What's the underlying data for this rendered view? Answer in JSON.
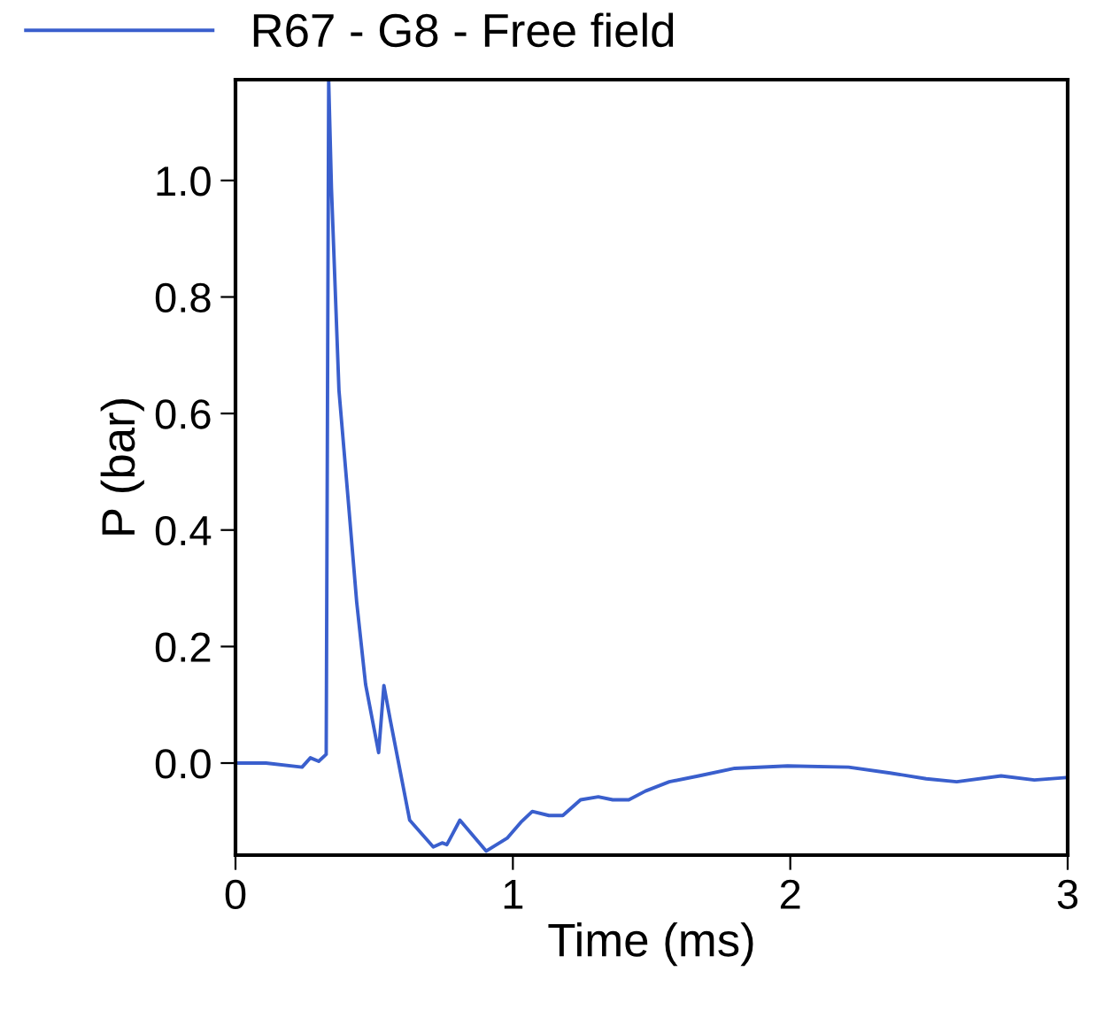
{
  "chart_data": {
    "type": "line",
    "xlabel": "Time (ms)",
    "ylabel": "P (bar)",
    "xlim": [
      0,
      3
    ],
    "ylim": [
      -0.158,
      1.173
    ],
    "xticks": [
      0,
      1,
      2,
      3
    ],
    "yticks": [
      {
        "value": 0,
        "label": "0.0"
      },
      {
        "value": 0.2,
        "label": "0.2"
      },
      {
        "value": 0.4,
        "label": "0.4"
      },
      {
        "value": 0.6,
        "label": "0.6"
      },
      {
        "value": 0.8,
        "label": "0.8"
      },
      {
        "value": 1.0,
        "label": "1.0"
      }
    ],
    "grid": false,
    "legend": "top left",
    "marker": "none",
    "line_style": "solid",
    "series": [
      {
        "name": "R67 - G8 - Free field",
        "color": "#3a5fcd",
        "x": [
          0.01,
          0.11,
          0.24,
          0.27,
          0.3,
          0.327,
          0.336,
          0.346,
          0.373,
          0.405,
          0.437,
          0.469,
          0.516,
          0.535,
          0.558,
          0.628,
          0.713,
          0.745,
          0.762,
          0.809,
          0.904,
          0.979,
          1.032,
          1.07,
          1.13,
          1.18,
          1.244,
          1.308,
          1.36,
          1.418,
          1.478,
          1.564,
          1.67,
          1.8,
          1.99,
          2.21,
          2.36,
          2.49,
          2.6,
          2.76,
          2.88,
          2.99
        ],
        "values": [
          0.0,
          0.0,
          -0.007,
          0.009,
          0.003,
          0.015,
          1.17,
          0.986,
          0.64,
          0.459,
          0.276,
          0.135,
          0.018,
          0.133,
          0.074,
          -0.098,
          -0.144,
          -0.137,
          -0.14,
          -0.098,
          -0.151,
          -0.129,
          -0.1,
          -0.083,
          -0.09,
          -0.09,
          -0.063,
          -0.058,
          -0.063,
          -0.063,
          -0.048,
          -0.032,
          -0.022,
          -0.009,
          -0.005,
          -0.007,
          -0.017,
          -0.027,
          -0.032,
          -0.022,
          -0.029,
          -0.025
        ]
      }
    ]
  }
}
